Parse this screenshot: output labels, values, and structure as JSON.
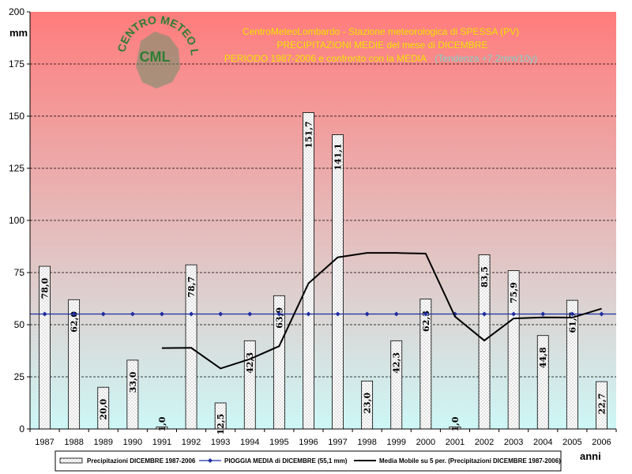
{
  "title": {
    "line1": "CentroMeteoLombardo - Stazione meteorologica di SPESSA (PV)",
    "line2": "PRECIPITAZIONI MEDIE del mese di DICEMBRE",
    "line3": "PERIODO 1987-2006 e confronto con la MEDIA",
    "trend": "(Tendenza +7,2mm/10y)"
  },
  "logo": {
    "ring_text": "CENTRO METEO LOMBARDO",
    "initials": "CML"
  },
  "colors": {
    "top": "#ff7c7c",
    "bottom": "#cdf7f6",
    "mean_line": "#1f2d9e",
    "moving_avg": "#000000"
  },
  "chart_data": {
    "type": "bar",
    "ylabel": "mm",
    "xlabel": "anni",
    "ylim": [
      0,
      200
    ],
    "yticks": [
      0,
      25,
      50,
      75,
      100,
      125,
      150,
      175,
      200
    ],
    "categories": [
      "1987",
      "1988",
      "1989",
      "1990",
      "1991",
      "1992",
      "1993",
      "1994",
      "1995",
      "1996",
      "1997",
      "1998",
      "1999",
      "2000",
      "2001",
      "2002",
      "2003",
      "2004",
      "2005",
      "2006"
    ],
    "series": [
      {
        "name": "Precipitazioni DICEMBRE 1987-2006",
        "kind": "bar",
        "values": [
          78.0,
          62.0,
          20.0,
          33.0,
          1.0,
          78.7,
          12.5,
          42.3,
          63.9,
          151.7,
          141.1,
          23.0,
          42.3,
          62.3,
          1.0,
          83.5,
          75.9,
          44.8,
          61.7,
          22.7
        ],
        "labels": [
          "78,0",
          "62,0",
          "20,0",
          "33,0",
          "1,0",
          "78,7",
          "12,5",
          "42,3",
          "63,9",
          "151,7",
          "141,1",
          "23,0",
          "42,3",
          "62,3",
          "1,0",
          "83,5",
          "75,9",
          "44,8",
          "61,7",
          "22,7"
        ]
      },
      {
        "name": "PIOGGIA MEDIA di DICEMBRE (55,1 mm)",
        "kind": "line",
        "values": [
          55.1,
          55.1,
          55.1,
          55.1,
          55.1,
          55.1,
          55.1,
          55.1,
          55.1,
          55.1,
          55.1,
          55.1,
          55.1,
          55.1,
          55.1,
          55.1,
          55.1,
          55.1,
          55.1,
          55.1
        ]
      },
      {
        "name": "Media Mobile su 5 per. (Precipitazioni DICEMBRE 1987-2006)",
        "kind": "line",
        "values": [
          null,
          null,
          null,
          null,
          38.8,
          38.9,
          29.0,
          33.5,
          39.7,
          69.8,
          82.3,
          84.4,
          84.4,
          84.1,
          53.9,
          42.4,
          53.0,
          53.5,
          53.4,
          57.7
        ]
      }
    ]
  }
}
